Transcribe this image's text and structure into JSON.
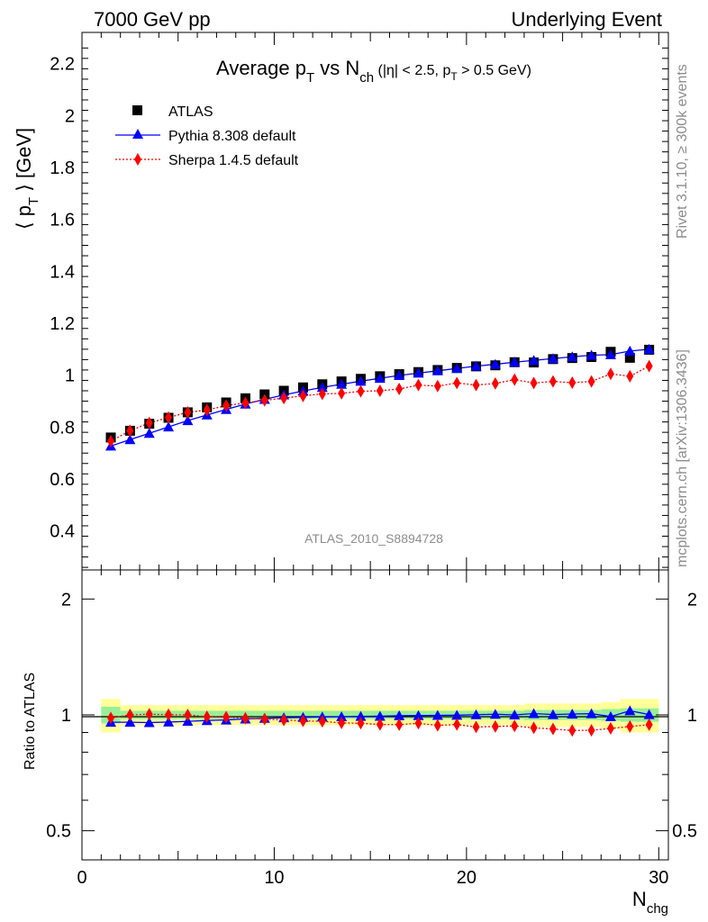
{
  "header": {
    "left": "7000 GeV pp",
    "right": "Underlying Event"
  },
  "side_labels": {
    "rivet": "Rivet 3.1.10, ≥ 300k events",
    "mcplots": "mcplots.cern.ch [arXiv:1306.3436]"
  },
  "chart_data": [
    {
      "type": "scatter",
      "panel": "main",
      "title": {
        "main": "Average p",
        "sub_t": "T",
        "vs": " vs N",
        "sub_ch": "ch",
        "cuts_a": " (|η| < 2.5, p",
        "cuts_sub": "T",
        "cuts_b": " > 0.5 GeV)"
      },
      "ylabel": {
        "pre": "⟨ p",
        "sub": "T",
        "post": " ⟩ [GeV]"
      },
      "ylim": [
        0.25,
        2.32
      ],
      "xlim": [
        0,
        30.5
      ],
      "yticks": [
        "0.4",
        "0.6",
        "0.8",
        "1",
        "1.2",
        "1.4",
        "1.6",
        "1.8",
        "2",
        "2.2"
      ],
      "watermark": "ATLAS_2010_S8894728",
      "legend_position": "top-left",
      "x": [
        1.5,
        2.5,
        3.5,
        4.5,
        5.5,
        6.5,
        7.5,
        8.5,
        9.5,
        10.5,
        11.5,
        12.5,
        13.5,
        14.5,
        15.5,
        16.5,
        17.5,
        18.5,
        19.5,
        20.5,
        21.5,
        22.5,
        23.5,
        24.5,
        25.5,
        26.5,
        27.5,
        28.5,
        29.5
      ],
      "series": [
        {
          "name": "ATLAS",
          "marker": "square",
          "color": "#000000",
          "values": [
            0.76,
            0.786,
            0.813,
            0.836,
            0.857,
            0.876,
            0.895,
            0.911,
            0.926,
            0.94,
            0.953,
            0.965,
            0.976,
            0.986,
            0.996,
            1.004,
            1.012,
            1.02,
            1.028,
            1.034,
            1.038,
            1.05,
            1.049,
            1.062,
            1.066,
            1.07,
            1.09,
            1.067,
            1.098
          ]
        },
        {
          "name": "Pythia 8.308 default",
          "marker": "triangle",
          "color": "#0000ff",
          "values": [
            0.727,
            0.752,
            0.776,
            0.801,
            0.825,
            0.847,
            0.868,
            0.889,
            0.907,
            0.924,
            0.939,
            0.953,
            0.965,
            0.977,
            0.988,
            0.999,
            1.008,
            1.017,
            1.026,
            1.035,
            1.042,
            1.05,
            1.057,
            1.064,
            1.071,
            1.077,
            1.079,
            1.093,
            1.1
          ]
        },
        {
          "name": "Sherpa 1.4.5 default",
          "marker": "diamond",
          "color": "#ff0000",
          "values": [
            0.746,
            0.786,
            0.816,
            0.837,
            0.857,
            0.866,
            0.883,
            0.893,
            0.903,
            0.912,
            0.92,
            0.928,
            0.93,
            0.938,
            0.94,
            0.947,
            0.962,
            0.958,
            0.97,
            0.962,
            0.968,
            0.983,
            0.97,
            0.976,
            0.971,
            0.976,
            1.005,
            0.996,
            1.035
          ]
        }
      ]
    },
    {
      "type": "scatter",
      "panel": "ratio",
      "ylabel": "Ratio to ATLAS",
      "xlabel": {
        "main": "N",
        "sub": "chg"
      },
      "log_y": true,
      "ylim": [
        0.42,
        2.38
      ],
      "xlim": [
        0,
        30.5
      ],
      "yticks": [
        "0.5",
        "1",
        "2"
      ],
      "xticks": [
        "0",
        "10",
        "20",
        "30"
      ],
      "x": [
        1.5,
        2.5,
        3.5,
        4.5,
        5.5,
        6.5,
        7.5,
        8.5,
        9.5,
        10.5,
        11.5,
        12.5,
        13.5,
        14.5,
        15.5,
        16.5,
        17.5,
        18.5,
        19.5,
        20.5,
        21.5,
        22.5,
        23.5,
        24.5,
        25.5,
        26.5,
        27.5,
        28.5,
        29.5
      ],
      "band_yellow_halfwidth": [
        0.1,
        0.06,
        0.06,
        0.06,
        0.06,
        0.06,
        0.06,
        0.06,
        0.06,
        0.06,
        0.06,
        0.06,
        0.06,
        0.06,
        0.06,
        0.06,
        0.06,
        0.06,
        0.06,
        0.06,
        0.06,
        0.06,
        0.07,
        0.07,
        0.07,
        0.07,
        0.08,
        0.1,
        0.1
      ],
      "band_green_halfwidth": [
        0.05,
        0.025,
        0.025,
        0.025,
        0.025,
        0.025,
        0.025,
        0.025,
        0.025,
        0.025,
        0.025,
        0.025,
        0.025,
        0.025,
        0.025,
        0.025,
        0.025,
        0.025,
        0.025,
        0.025,
        0.025,
        0.025,
        0.03,
        0.03,
        0.03,
        0.03,
        0.035,
        0.04,
        0.04
      ],
      "series": [
        {
          "name": "Pythia 8.308 default",
          "marker": "triangle",
          "color": "#0000ff",
          "values": [
            0.957,
            0.957,
            0.955,
            0.958,
            0.962,
            0.967,
            0.97,
            0.976,
            0.98,
            0.983,
            0.985,
            0.988,
            0.989,
            0.991,
            0.992,
            0.995,
            0.996,
            0.997,
            0.998,
            1.001,
            1.004,
            1.0,
            1.008,
            1.002,
            1.005,
            1.007,
            0.99,
            1.025,
            1.002
          ]
        },
        {
          "name": "Sherpa 1.4.5 default",
          "marker": "diamond",
          "color": "#ff0000",
          "values": [
            0.982,
            1.0,
            1.004,
            1.001,
            1.0,
            0.989,
            0.987,
            0.98,
            0.975,
            0.97,
            0.965,
            0.962,
            0.953,
            0.951,
            0.944,
            0.943,
            0.951,
            0.939,
            0.944,
            0.93,
            0.933,
            0.936,
            0.925,
            0.919,
            0.911,
            0.912,
            0.922,
            0.933,
            0.943
          ]
        }
      ]
    }
  ]
}
